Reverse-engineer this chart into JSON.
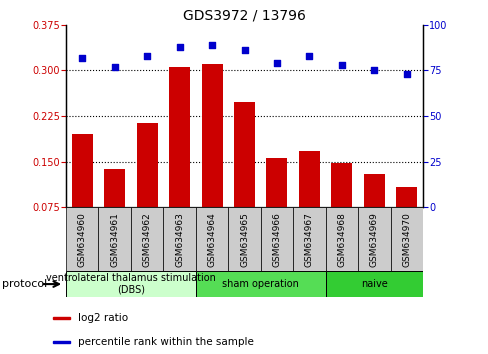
{
  "title": "GDS3972 / 13796",
  "samples": [
    "GSM634960",
    "GSM634961",
    "GSM634962",
    "GSM634963",
    "GSM634964",
    "GSM634965",
    "GSM634966",
    "GSM634967",
    "GSM634968",
    "GSM634969",
    "GSM634970"
  ],
  "log2_ratio": [
    0.195,
    0.137,
    0.213,
    0.305,
    0.31,
    0.248,
    0.155,
    0.168,
    0.148,
    0.13,
    0.108
  ],
  "percentile_rank": [
    82,
    77,
    83,
    88,
    89,
    86,
    79,
    83,
    78,
    75,
    73
  ],
  "groups": [
    {
      "label": "ventrolateral thalamus stimulation\n(DBS)",
      "start": 0,
      "end": 3,
      "color": "#ccffcc"
    },
    {
      "label": "sham operation",
      "start": 4,
      "end": 7,
      "color": "#55dd55"
    },
    {
      "label": "naive",
      "start": 8,
      "end": 10,
      "color": "#33cc33"
    }
  ],
  "bar_color": "#cc0000",
  "scatter_color": "#0000cc",
  "ylim_left": [
    0.075,
    0.375
  ],
  "ylim_right": [
    0,
    100
  ],
  "yticks_left": [
    0.075,
    0.15,
    0.225,
    0.3,
    0.375
  ],
  "yticks_right": [
    0,
    25,
    50,
    75,
    100
  ],
  "hlines": [
    0.15,
    0.225,
    0.3
  ],
  "legend_items": [
    {
      "color": "#cc0000",
      "label": "log2 ratio"
    },
    {
      "color": "#0000cc",
      "label": "percentile rank within the sample"
    }
  ],
  "bar_bottom": 0.075,
  "label_box_color": "#cccccc",
  "title_fontsize": 10,
  "tick_fontsize": 7,
  "label_fontsize": 6.5,
  "group_fontsize": 7,
  "legend_fontsize": 7.5
}
